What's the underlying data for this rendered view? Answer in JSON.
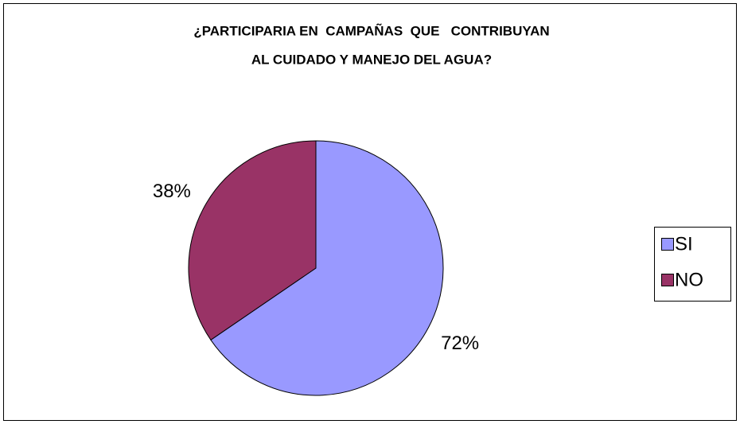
{
  "chart_data": {
    "type": "pie",
    "title": [
      "¿PARTICIPARIA EN  CAMPAÑAS  QUE   CONTRIBUYAN",
      "AL CUIDADO Y MANEJO DEL AGUA?"
    ],
    "categories": [
      "SI",
      "NO"
    ],
    "values": [
      72,
      38
    ],
    "value_labels": [
      "72%",
      "38%"
    ],
    "colors": [
      "#9999ff",
      "#993366"
    ],
    "legend": "right"
  }
}
